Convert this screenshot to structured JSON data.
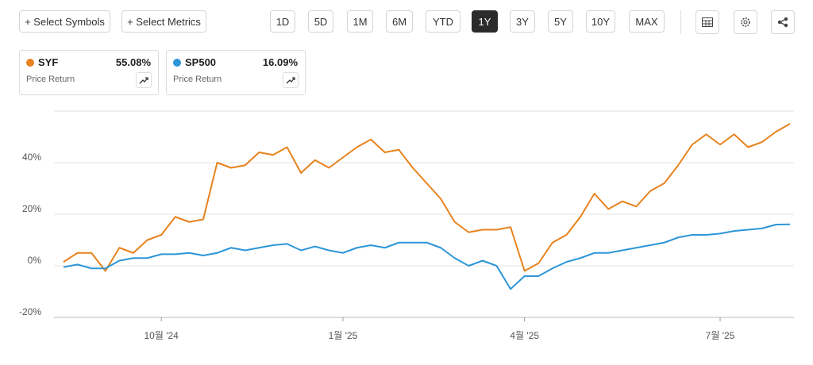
{
  "toolbar": {
    "select_symbols": "+ Select Symbols",
    "select_metrics": "+ Select Metrics",
    "periods": [
      "1D",
      "5D",
      "1M",
      "6M",
      "YTD",
      "1Y",
      "3Y",
      "5Y",
      "10Y",
      "MAX"
    ],
    "active_period_index": 5
  },
  "cards": [
    {
      "symbol": "SYF",
      "change": "55.08%",
      "metric": "Price Return",
      "color": "#e8821e"
    },
    {
      "symbol": "SP500",
      "change": "16.09%",
      "metric": "Price Return",
      "color": "#2d96d8"
    }
  ],
  "chart_data": {
    "type": "line",
    "categories": [
      null,
      null,
      null,
      null,
      null,
      null,
      null,
      "10월 '24",
      null,
      null,
      null,
      null,
      null,
      null,
      null,
      null,
      null,
      null,
      null,
      null,
      "1월 '25",
      null,
      null,
      null,
      null,
      null,
      null,
      null,
      null,
      null,
      null,
      null,
      null,
      "4월 '25",
      null,
      null,
      null,
      null,
      null,
      null,
      null,
      null,
      null,
      null,
      null,
      null,
      null,
      "7월 '25",
      null,
      null,
      null,
      null,
      null
    ],
    "series": [
      {
        "name": "SYF",
        "color": "#e8821e",
        "values": [
          1.5,
          5,
          5,
          -2,
          7,
          5,
          10,
          12,
          19,
          17,
          18,
          40,
          38,
          39,
          44,
          43,
          46,
          36,
          41,
          38,
          42,
          46,
          49,
          44,
          45,
          38,
          32,
          26,
          17,
          13,
          14,
          14,
          15,
          -2,
          1,
          9,
          12,
          19,
          28,
          22,
          25,
          23,
          29,
          32,
          39,
          47,
          51,
          47,
          51,
          46,
          48,
          52,
          55.08
        ]
      },
      {
        "name": "SP500",
        "color": "#2d96d8",
        "values": [
          -0.5,
          0.5,
          -1,
          -1,
          2,
          3,
          3,
          4.5,
          4.5,
          5,
          4,
          5,
          7,
          6,
          7,
          8,
          8.5,
          6,
          7.5,
          6,
          5,
          7,
          8,
          7,
          9,
          9,
          9,
          7,
          3,
          0,
          2,
          0,
          -9,
          -4,
          -4,
          -1,
          1.5,
          3,
          5,
          5,
          6,
          7,
          8,
          9,
          11,
          12,
          12,
          12.5,
          13.5,
          14,
          14.5,
          16,
          16.09
        ]
      }
    ],
    "ylim": [
      -20,
      60
    ],
    "yticks": [
      {
        "value": -20,
        "label": "-20%"
      },
      {
        "value": 0,
        "label": "0%"
      },
      {
        "value": 20,
        "label": "20%"
      },
      {
        "value": 40,
        "label": "40%"
      }
    ],
    "grid": true
  }
}
